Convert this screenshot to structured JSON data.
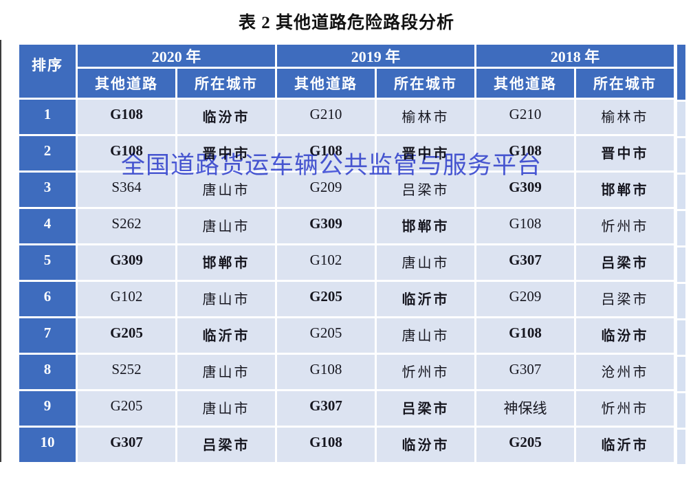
{
  "title": "表 2 其他道路危险路段分析",
  "watermark": "全国道路货运车辆公共监管与服务平台",
  "table": {
    "rank_header": "排序",
    "year_groups": [
      {
        "year": "2020 年",
        "subcols": [
          "其他道路",
          "所在城市"
        ]
      },
      {
        "year": "2019 年",
        "subcols": [
          "其他道路",
          "所在城市"
        ]
      },
      {
        "year": "2018 年",
        "subcols": [
          "其他道路",
          "所在城市"
        ]
      }
    ],
    "rows": [
      {
        "rank": "1",
        "cells": [
          {
            "text": "G108",
            "red": true
          },
          {
            "text": "临汾市",
            "red": true
          },
          {
            "text": "G210",
            "red": false
          },
          {
            "text": "榆林市",
            "red": false
          },
          {
            "text": "G210",
            "red": false
          },
          {
            "text": "榆林市",
            "red": false
          }
        ]
      },
      {
        "rank": "2",
        "cells": [
          {
            "text": "G108",
            "red": true
          },
          {
            "text": "晋中市",
            "red": true
          },
          {
            "text": "G108",
            "red": true
          },
          {
            "text": "晋中市",
            "red": true
          },
          {
            "text": "G108",
            "red": true
          },
          {
            "text": "晋中市",
            "red": true
          }
        ]
      },
      {
        "rank": "3",
        "cells": [
          {
            "text": "S364",
            "red": false
          },
          {
            "text": "唐山市",
            "red": false
          },
          {
            "text": "G209",
            "red": false
          },
          {
            "text": "吕梁市",
            "red": false
          },
          {
            "text": "G309",
            "red": true
          },
          {
            "text": "邯郸市",
            "red": true
          }
        ]
      },
      {
        "rank": "4",
        "cells": [
          {
            "text": "S262",
            "red": false
          },
          {
            "text": "唐山市",
            "red": false
          },
          {
            "text": "G309",
            "red": true
          },
          {
            "text": "邯郸市",
            "red": true
          },
          {
            "text": "G108",
            "red": false
          },
          {
            "text": "忻州市",
            "red": false
          }
        ]
      },
      {
        "rank": "5",
        "cells": [
          {
            "text": "G309",
            "red": true
          },
          {
            "text": "邯郸市",
            "red": true
          },
          {
            "text": "G102",
            "red": false
          },
          {
            "text": "唐山市",
            "red": false
          },
          {
            "text": "G307",
            "red": true
          },
          {
            "text": "吕梁市",
            "red": true
          }
        ]
      },
      {
        "rank": "6",
        "cells": [
          {
            "text": "G102",
            "red": false
          },
          {
            "text": "唐山市",
            "red": false
          },
          {
            "text": "G205",
            "red": true
          },
          {
            "text": "临沂市",
            "red": true
          },
          {
            "text": "G209",
            "red": false
          },
          {
            "text": "吕梁市",
            "red": false
          }
        ]
      },
      {
        "rank": "7",
        "cells": [
          {
            "text": "G205",
            "red": true
          },
          {
            "text": "临沂市",
            "red": true
          },
          {
            "text": "G205",
            "red": false
          },
          {
            "text": "唐山市",
            "red": false
          },
          {
            "text": "G108",
            "red": true
          },
          {
            "text": "临汾市",
            "red": true
          }
        ]
      },
      {
        "rank": "8",
        "cells": [
          {
            "text": "S252",
            "red": false
          },
          {
            "text": "唐山市",
            "red": false
          },
          {
            "text": "G108",
            "red": false
          },
          {
            "text": "忻州市",
            "red": false
          },
          {
            "text": "G307",
            "red": false
          },
          {
            "text": "沧州市",
            "red": false
          }
        ]
      },
      {
        "rank": "9",
        "cells": [
          {
            "text": "G205",
            "red": false
          },
          {
            "text": "唐山市",
            "red": false
          },
          {
            "text": "G307",
            "red": true
          },
          {
            "text": "吕梁市",
            "red": true
          },
          {
            "text": "神保线",
            "red": false
          },
          {
            "text": "忻州市",
            "red": false
          }
        ]
      },
      {
        "rank": "10",
        "cells": [
          {
            "text": "G307",
            "red": true
          },
          {
            "text": "吕梁市",
            "red": true
          },
          {
            "text": "G108",
            "red": true
          },
          {
            "text": "临汾市",
            "red": true
          },
          {
            "text": "G205",
            "red": true
          },
          {
            "text": "临沂市",
            "red": true
          }
        ]
      }
    ]
  },
  "colors": {
    "header_blue": "#3e6cbe",
    "cell_background": "#dce3f1",
    "highlight_red": "#b41117",
    "text_dark": "#16161f",
    "watermark_blue": "#4150d8"
  }
}
